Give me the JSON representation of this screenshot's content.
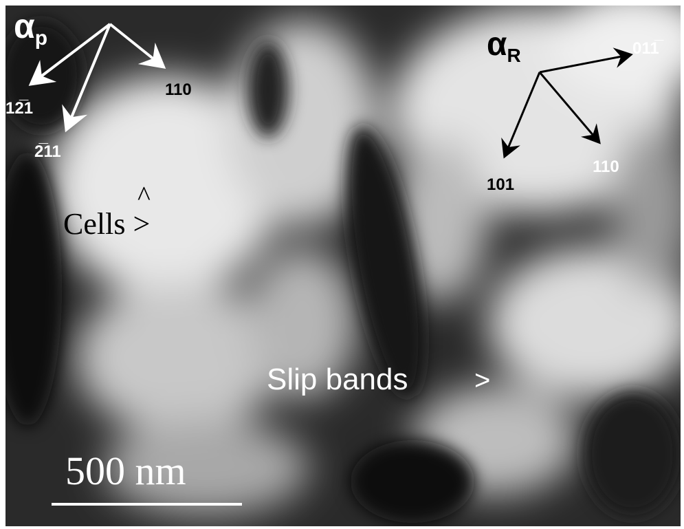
{
  "figure": {
    "alpha_p": {
      "symbol": "α",
      "subscript": "p",
      "directions": [
        "12̅1",
        "2̅11",
        "110"
      ]
    },
    "alpha_R": {
      "symbol": "α",
      "subscript": "R",
      "directions": [
        "011̅",
        "110",
        "101"
      ]
    },
    "annotations": {
      "cells_marker": "^",
      "cells": "Cells >",
      "slip_bands": "Slip bands",
      "slip_bands_marker": ">"
    },
    "scale_bar": "500 nm"
  }
}
